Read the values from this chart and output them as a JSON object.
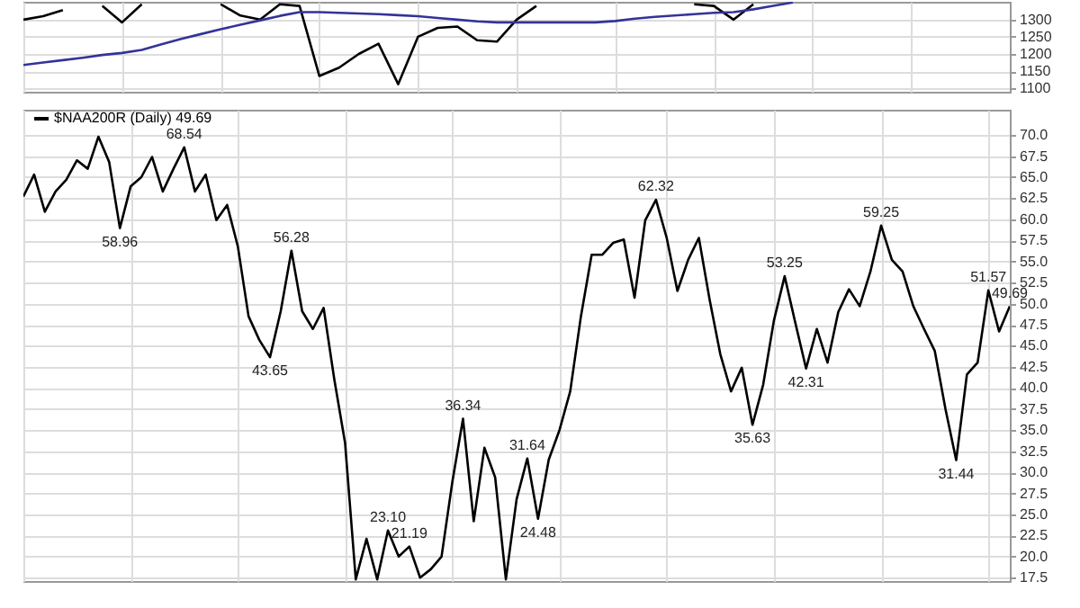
{
  "chart_data": [
    {
      "type": "line",
      "categories": [
        null,
        null,
        null,
        null,
        null,
        null,
        null,
        null,
        null,
        null,
        null,
        null,
        null,
        null,
        null,
        null,
        null,
        null,
        null,
        null,
        null,
        null,
        null,
        null,
        null,
        null,
        null,
        null,
        null,
        null,
        null,
        null,
        null,
        null,
        null,
        null,
        null,
        null,
        null,
        null,
        null,
        null,
        null,
        null,
        null,
        null,
        null,
        null,
        null,
        null,
        null
      ],
      "series": [
        {
          "color": "#000000",
          "values": [
            1300,
            1310,
            1328,
            null,
            1340,
            1292,
            1345,
            null,
            null,
            null,
            1345,
            1312,
            1300,
            1345,
            1340,
            1136,
            1160,
            1200,
            1230,
            1112,
            1250,
            1276,
            1280,
            1240,
            1236,
            1300,
            1340,
            null,
            null,
            null,
            null,
            null,
            null,
            null,
            1345,
            1340,
            1300,
            1345,
            null,
            null,
            null,
            null,
            null,
            null,
            null,
            null,
            null,
            null,
            null,
            null,
            null
          ]
        },
        {
          "color": "#333399",
          "values": [
            1168,
            1175,
            1182,
            1189,
            1197,
            1203,
            1212,
            1228,
            1244,
            1258,
            1272,
            1285,
            1298,
            1311,
            1322,
            1322,
            1320,
            1318,
            1316,
            1313,
            1310,
            1305,
            1300,
            1295,
            1292,
            1292,
            1292,
            1292,
            1292,
            1292,
            1296,
            1303,
            1308,
            1312,
            1316,
            1320,
            1322,
            1330,
            1340,
            1350,
            null,
            null,
            null,
            null,
            null,
            null,
            null,
            null,
            null,
            null,
            null
          ]
        }
      ],
      "ylim": [
        1090,
        1352
      ],
      "yticks": [
        1100,
        1150,
        1200,
        1250,
        1300
      ],
      "grid": true,
      "tick_labels": "y"
    },
    {
      "type": "line",
      "categories": [
        null,
        null,
        null,
        null,
        null,
        null,
        null,
        null,
        null,
        null,
        null,
        null,
        null,
        null,
        null,
        null,
        null,
        null,
        null,
        null,
        null,
        null,
        null,
        null,
        null,
        null,
        null,
        null,
        null,
        null,
        null,
        null,
        null,
        null,
        null,
        null,
        null,
        null,
        null,
        null,
        null,
        null,
        null,
        null,
        null,
        null,
        null,
        null,
        null,
        null,
        null,
        null,
        null,
        null,
        null,
        null,
        null,
        null,
        null,
        null,
        null,
        null,
        null,
        null,
        null,
        null,
        null,
        null,
        null,
        null,
        null,
        null,
        null,
        null,
        null,
        null,
        null,
        null,
        null,
        null,
        null,
        null,
        null,
        null,
        null,
        null,
        null,
        null,
        null,
        null,
        null,
        null,
        null
      ],
      "series": [
        {
          "name": "$NAA200R (Daily) 49.69",
          "color": "#000000",
          "values": [
            62.7,
            65.3,
            60.9,
            63.3,
            64.7,
            67.0,
            66.0,
            69.8,
            66.8,
            58.96,
            63.9,
            65.0,
            67.4,
            63.3,
            66.0,
            68.54,
            63.3,
            65.3,
            59.9,
            61.7,
            56.8,
            48.5,
            45.7,
            43.65,
            49.1,
            56.28,
            49.1,
            47.0,
            49.5,
            41.0,
            33.5,
            17.3,
            22.1,
            17.3,
            23.1,
            20.0,
            21.19,
            17.5,
            18.5,
            20.0,
            28.8,
            36.34,
            24.2,
            32.9,
            29.4,
            17.3,
            26.8,
            31.64,
            24.48,
            31.5,
            35.0,
            39.6,
            48.5,
            55.8,
            55.8,
            57.2,
            57.6,
            50.7,
            59.9,
            62.32,
            57.8,
            51.5,
            55.2,
            57.8,
            50.5,
            44.0,
            39.6,
            42.4,
            35.63,
            40.4,
            48.0,
            53.25,
            47.7,
            42.31,
            47.0,
            43.0,
            49.0,
            51.7,
            49.7,
            53.8,
            59.25,
            55.2,
            53.8,
            49.7,
            47.0,
            44.4,
            37.5,
            31.44,
            41.6,
            43.0,
            51.57,
            46.7,
            49.69
          ],
          "value_labels": [
            null,
            null,
            null,
            null,
            null,
            null,
            null,
            null,
            null,
            "58.96",
            null,
            null,
            null,
            null,
            null,
            "68.54",
            null,
            null,
            null,
            null,
            null,
            null,
            null,
            "43.65",
            null,
            "56.28",
            null,
            null,
            null,
            null,
            null,
            null,
            null,
            null,
            "23.10",
            null,
            "21.19",
            null,
            null,
            null,
            null,
            "36.34",
            null,
            null,
            null,
            null,
            null,
            "31.64",
            "24.48",
            null,
            null,
            null,
            null,
            null,
            null,
            null,
            null,
            null,
            null,
            "62.32",
            null,
            null,
            null,
            null,
            null,
            null,
            null,
            null,
            "35.63",
            null,
            null,
            "53.25",
            null,
            "42.31",
            null,
            null,
            null,
            null,
            null,
            null,
            "59.25",
            null,
            null,
            null,
            null,
            null,
            null,
            "31.44",
            null,
            null,
            "51.57",
            null,
            "49.69"
          ]
        }
      ],
      "ylim": [
        17.1,
        73
      ],
      "yticks": [
        17.5,
        {
          "value": 20,
          "label": "20.0"
        },
        22.5,
        {
          "value": 25,
          "label": "25.0"
        },
        27.5,
        {
          "value": 30,
          "label": "30.0"
        },
        32.5,
        {
          "value": 35,
          "label": "35.0"
        },
        37.5,
        {
          "value": 40,
          "label": "40.0"
        },
        42.5,
        {
          "value": 45,
          "label": "45.0"
        },
        47.5,
        {
          "value": 50,
          "label": "50.0"
        },
        52.5,
        {
          "value": 55,
          "label": "55.0"
        },
        57.5,
        {
          "value": 60,
          "label": "60.0"
        },
        62.5,
        {
          "value": 65,
          "label": "65.0"
        },
        67.5,
        {
          "value": 70,
          "label": "70.0"
        }
      ],
      "grid": true,
      "tick_labels": "y",
      "legend": "top left"
    }
  ]
}
